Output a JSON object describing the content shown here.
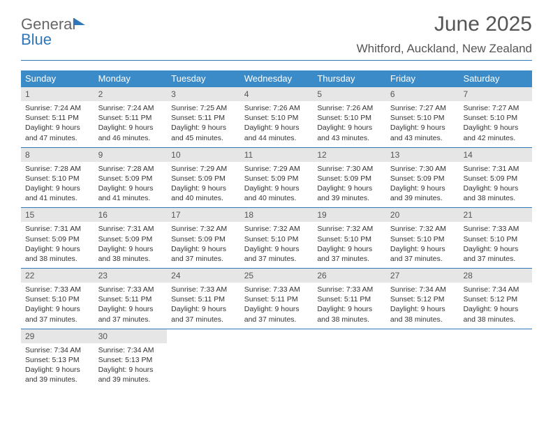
{
  "logo": {
    "line1": "General",
    "line2": "Blue"
  },
  "header": {
    "title": "June 2025",
    "location": "Whitford, Auckland, New Zealand"
  },
  "colors": {
    "header_bar": "#3b8bc9",
    "accent": "#2f77b8",
    "daynum_bg": "#e6e6e6",
    "text": "#333333",
    "muted": "#555555",
    "background": "#ffffff"
  },
  "typography": {
    "title_fontsize": 30,
    "location_fontsize": 17,
    "dow_fontsize": 13,
    "daynum_fontsize": 12,
    "body_fontsize": 10.5
  },
  "days_of_week": [
    "Sunday",
    "Monday",
    "Tuesday",
    "Wednesday",
    "Thursday",
    "Friday",
    "Saturday"
  ],
  "labels": {
    "sunrise": "Sunrise:",
    "sunset": "Sunset:",
    "daylight": "Daylight:"
  },
  "weeks": [
    [
      {
        "n": "1",
        "sr": "7:24 AM",
        "ss": "5:11 PM",
        "dl": "9 hours and 47 minutes."
      },
      {
        "n": "2",
        "sr": "7:24 AM",
        "ss": "5:11 PM",
        "dl": "9 hours and 46 minutes."
      },
      {
        "n": "3",
        "sr": "7:25 AM",
        "ss": "5:11 PM",
        "dl": "9 hours and 45 minutes."
      },
      {
        "n": "4",
        "sr": "7:26 AM",
        "ss": "5:10 PM",
        "dl": "9 hours and 44 minutes."
      },
      {
        "n": "5",
        "sr": "7:26 AM",
        "ss": "5:10 PM",
        "dl": "9 hours and 43 minutes."
      },
      {
        "n": "6",
        "sr": "7:27 AM",
        "ss": "5:10 PM",
        "dl": "9 hours and 43 minutes."
      },
      {
        "n": "7",
        "sr": "7:27 AM",
        "ss": "5:10 PM",
        "dl": "9 hours and 42 minutes."
      }
    ],
    [
      {
        "n": "8",
        "sr": "7:28 AM",
        "ss": "5:10 PM",
        "dl": "9 hours and 41 minutes."
      },
      {
        "n": "9",
        "sr": "7:28 AM",
        "ss": "5:09 PM",
        "dl": "9 hours and 41 minutes."
      },
      {
        "n": "10",
        "sr": "7:29 AM",
        "ss": "5:09 PM",
        "dl": "9 hours and 40 minutes."
      },
      {
        "n": "11",
        "sr": "7:29 AM",
        "ss": "5:09 PM",
        "dl": "9 hours and 40 minutes."
      },
      {
        "n": "12",
        "sr": "7:30 AM",
        "ss": "5:09 PM",
        "dl": "9 hours and 39 minutes."
      },
      {
        "n": "13",
        "sr": "7:30 AM",
        "ss": "5:09 PM",
        "dl": "9 hours and 39 minutes."
      },
      {
        "n": "14",
        "sr": "7:31 AM",
        "ss": "5:09 PM",
        "dl": "9 hours and 38 minutes."
      }
    ],
    [
      {
        "n": "15",
        "sr": "7:31 AM",
        "ss": "5:09 PM",
        "dl": "9 hours and 38 minutes."
      },
      {
        "n": "16",
        "sr": "7:31 AM",
        "ss": "5:09 PM",
        "dl": "9 hours and 38 minutes."
      },
      {
        "n": "17",
        "sr": "7:32 AM",
        "ss": "5:09 PM",
        "dl": "9 hours and 37 minutes."
      },
      {
        "n": "18",
        "sr": "7:32 AM",
        "ss": "5:10 PM",
        "dl": "9 hours and 37 minutes."
      },
      {
        "n": "19",
        "sr": "7:32 AM",
        "ss": "5:10 PM",
        "dl": "9 hours and 37 minutes."
      },
      {
        "n": "20",
        "sr": "7:32 AM",
        "ss": "5:10 PM",
        "dl": "9 hours and 37 minutes."
      },
      {
        "n": "21",
        "sr": "7:33 AM",
        "ss": "5:10 PM",
        "dl": "9 hours and 37 minutes."
      }
    ],
    [
      {
        "n": "22",
        "sr": "7:33 AM",
        "ss": "5:10 PM",
        "dl": "9 hours and 37 minutes."
      },
      {
        "n": "23",
        "sr": "7:33 AM",
        "ss": "5:11 PM",
        "dl": "9 hours and 37 minutes."
      },
      {
        "n": "24",
        "sr": "7:33 AM",
        "ss": "5:11 PM",
        "dl": "9 hours and 37 minutes."
      },
      {
        "n": "25",
        "sr": "7:33 AM",
        "ss": "5:11 PM",
        "dl": "9 hours and 37 minutes."
      },
      {
        "n": "26",
        "sr": "7:33 AM",
        "ss": "5:11 PM",
        "dl": "9 hours and 38 minutes."
      },
      {
        "n": "27",
        "sr": "7:34 AM",
        "ss": "5:12 PM",
        "dl": "9 hours and 38 minutes."
      },
      {
        "n": "28",
        "sr": "7:34 AM",
        "ss": "5:12 PM",
        "dl": "9 hours and 38 minutes."
      }
    ],
    [
      {
        "n": "29",
        "sr": "7:34 AM",
        "ss": "5:13 PM",
        "dl": "9 hours and 39 minutes."
      },
      {
        "n": "30",
        "sr": "7:34 AM",
        "ss": "5:13 PM",
        "dl": "9 hours and 39 minutes."
      },
      {
        "empty": true
      },
      {
        "empty": true
      },
      {
        "empty": true
      },
      {
        "empty": true
      },
      {
        "empty": true
      }
    ]
  ]
}
